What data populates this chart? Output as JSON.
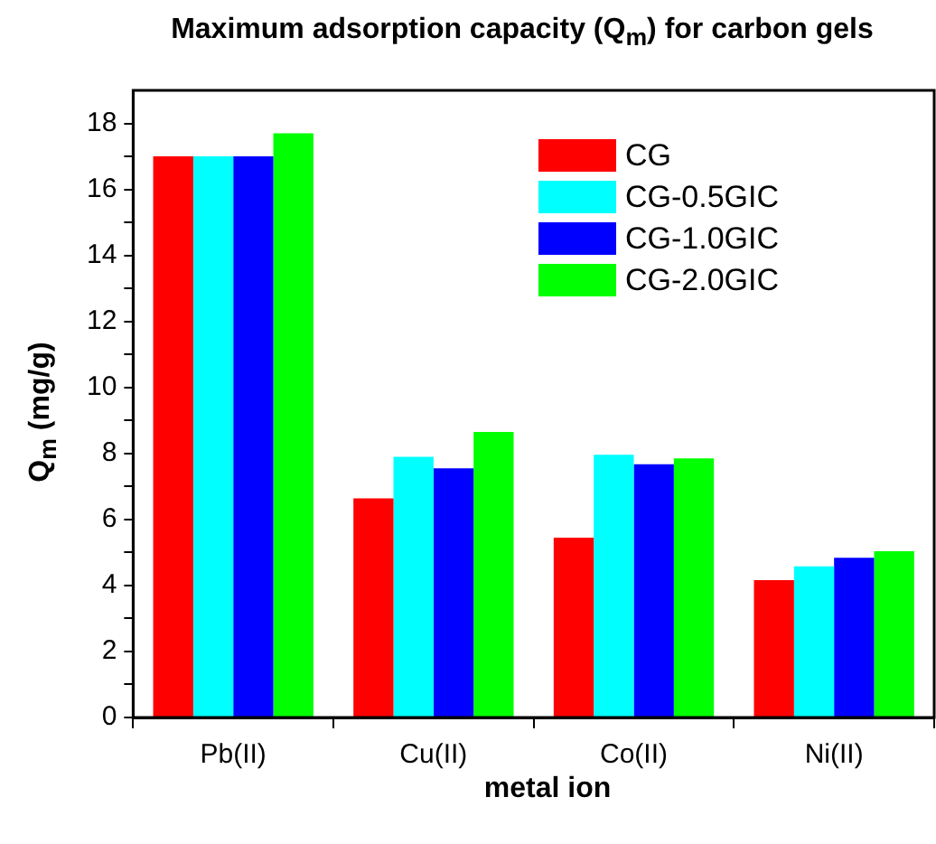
{
  "chart_data": {
    "type": "bar",
    "title": "Maximum adsorption capacity (Q$_{m}$) for carbon gels",
    "xlabel": "metal ion",
    "ylabel": "Q$_{m}$ (mg/g)",
    "categories": [
      "Pb(II)",
      "Cu(II)",
      "Co(II)",
      "Ni(II)"
    ],
    "series": [
      {
        "name": "CG",
        "color": "#ff0000",
        "values": [
          17.0,
          6.64,
          5.45,
          4.16
        ]
      },
      {
        "name": "CG-0.5GIC",
        "color": "#00ffff",
        "values": [
          17.0,
          7.9,
          7.96,
          4.58
        ]
      },
      {
        "name": "CG-1.0GIC",
        "color": "#0000ff",
        "values": [
          17.0,
          7.55,
          7.67,
          4.84
        ]
      },
      {
        "name": "CG-2.0GIC",
        "color": "#00ff00",
        "values": [
          17.7,
          8.65,
          7.85,
          5.04
        ]
      }
    ],
    "ylim": [
      0,
      19
    ],
    "yticks": [
      0,
      {
        "value": 1,
        "label": null
      },
      2,
      {
        "value": 3,
        "label": null
      },
      4,
      {
        "value": 5,
        "label": null
      },
      6,
      {
        "value": 7,
        "label": null
      },
      8,
      {
        "value": 9,
        "label": null
      },
      10,
      {
        "value": 11,
        "label": null
      },
      12,
      {
        "value": 13,
        "label": null
      },
      14,
      {
        "value": 15,
        "label": null
      },
      16,
      {
        "value": 17,
        "label": null
      },
      18
    ],
    "grid": false,
    "legend": "top right"
  }
}
